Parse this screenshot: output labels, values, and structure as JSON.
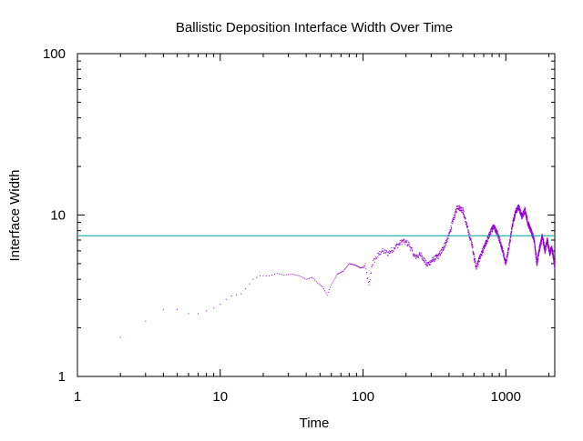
{
  "chart_data": {
    "type": "scatter",
    "title": "Ballistic Deposition Interface Width Over Time",
    "xlabel": "Time",
    "ylabel": "Interface Width",
    "xscale": "log",
    "yscale": "log",
    "xlim": [
      1,
      2200
    ],
    "ylim": [
      1,
      100
    ],
    "x_ticks": [
      {
        "value": 1,
        "label": "1"
      },
      {
        "value": 10,
        "label": "10"
      },
      {
        "value": 100,
        "label": "100"
      },
      {
        "value": 1000,
        "label": "1000"
      }
    ],
    "y_ticks": [
      {
        "value": 1,
        "label": "1"
      },
      {
        "value": 10,
        "label": "10"
      },
      {
        "value": 100,
        "label": "100"
      }
    ],
    "grid": false,
    "legend": "none",
    "series": [
      {
        "color": "#9400d3",
        "anchor_points": [
          [
            2,
            1.75
          ],
          [
            3,
            2.2
          ],
          [
            4,
            2.6
          ],
          [
            5,
            2.6
          ],
          [
            6,
            2.45
          ],
          [
            7,
            2.45
          ],
          [
            8,
            2.55
          ],
          [
            9,
            2.65
          ],
          [
            10,
            2.8
          ],
          [
            11,
            3.0
          ],
          [
            12,
            3.15
          ],
          [
            13,
            3.2
          ],
          [
            14,
            3.25
          ],
          [
            15,
            3.5
          ],
          [
            17,
            4.0
          ],
          [
            19,
            4.2
          ],
          [
            22,
            4.2
          ],
          [
            25,
            4.35
          ],
          [
            28,
            4.25
          ],
          [
            32,
            4.3
          ],
          [
            36,
            4.2
          ],
          [
            40,
            4.0
          ],
          [
            44,
            4.1
          ],
          [
            48,
            3.8
          ],
          [
            52,
            3.6
          ],
          [
            56,
            3.2
          ],
          [
            60,
            3.7
          ],
          [
            66,
            4.3
          ],
          [
            73,
            4.5
          ],
          [
            80,
            5.0
          ],
          [
            88,
            4.9
          ],
          [
            96,
            4.7
          ],
          [
            104,
            4.8
          ],
          [
            110,
            3.6
          ],
          [
            116,
            5.0
          ],
          [
            125,
            5.5
          ],
          [
            135,
            6.0
          ],
          [
            150,
            5.8
          ],
          [
            170,
            6.4
          ],
          [
            190,
            6.9
          ],
          [
            210,
            6.6
          ],
          [
            230,
            5.5
          ],
          [
            255,
            5.7
          ],
          [
            280,
            4.9
          ],
          [
            310,
            5.3
          ],
          [
            340,
            5.6
          ],
          [
            370,
            6.4
          ],
          [
            400,
            7.5
          ],
          [
            430,
            9.5
          ],
          [
            460,
            11.3
          ],
          [
            500,
            10.7
          ],
          [
            540,
            8.2
          ],
          [
            580,
            6.5
          ],
          [
            620,
            4.7
          ],
          [
            660,
            5.5
          ],
          [
            700,
            6.2
          ],
          [
            760,
            7.4
          ],
          [
            820,
            8.6
          ],
          [
            880,
            7.6
          ],
          [
            950,
            6.0
          ],
          [
            1000,
            5.0
          ],
          [
            1060,
            6.6
          ],
          [
            1110,
            8.6
          ],
          [
            1170,
            10.5
          ],
          [
            1230,
            11.2
          ],
          [
            1300,
            9.8
          ],
          [
            1360,
            10.8
          ],
          [
            1420,
            9.0
          ],
          [
            1500,
            8.0
          ],
          [
            1580,
            7.0
          ],
          [
            1650,
            5.0
          ],
          [
            1720,
            6.2
          ],
          [
            1800,
            7.4
          ],
          [
            1880,
            6.0
          ],
          [
            1950,
            7.0
          ],
          [
            2030,
            5.8
          ],
          [
            2100,
            6.3
          ],
          [
            2200,
            4.8
          ]
        ]
      },
      {
        "color": "#009e9e",
        "type": "hline",
        "y": 7.45
      }
    ]
  }
}
